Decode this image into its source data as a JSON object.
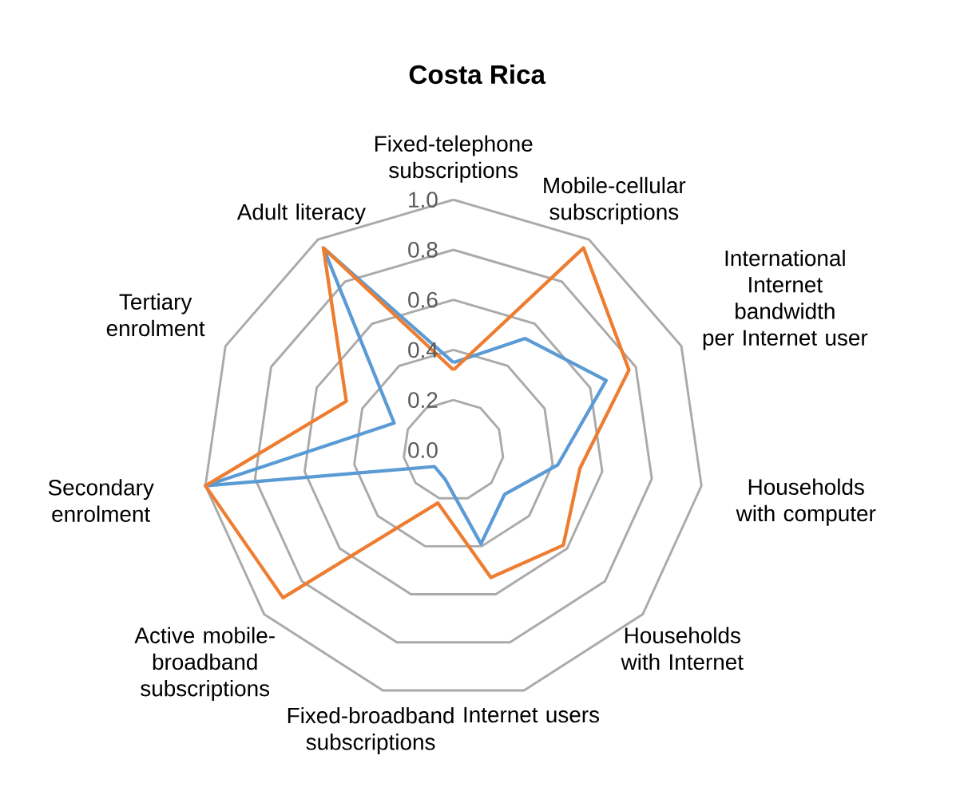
{
  "chart_data": {
    "type": "radar",
    "title": "Costa Rica",
    "categories": [
      "Fixed-telephone subscriptions",
      "Mobile-cellular subscriptions",
      "International Internet bandwidth per Internet user",
      "Households with computer",
      "Households with Internet",
      "Internet users",
      "Fixed-broadband subscriptions",
      "Active mobile-broadband subscriptions",
      "Secondary enrolment",
      "Tertiary enrolment",
      "Adult literacy"
    ],
    "series": [
      {
        "color": "#5b9bd5",
        "values": [
          0.35,
          0.53,
          0.67,
          0.42,
          0.27,
          0.39,
          0.12,
          0.1,
          1.0,
          0.26,
          0.96
        ]
      },
      {
        "color": "#ed7d31",
        "values": [
          0.32,
          0.96,
          0.77,
          0.51,
          0.58,
          0.53,
          0.22,
          0.9,
          1.0,
          0.47,
          0.96
        ]
      }
    ],
    "ylim": [
      0,
      1
    ],
    "yticks": [
      {
        "value": 0,
        "label": "0.0"
      },
      {
        "value": 0.2,
        "label": "0.2"
      },
      {
        "value": 0.4,
        "label": "0.4"
      },
      {
        "value": 0.6,
        "label": "0.6"
      },
      {
        "value": 0.8,
        "label": "0.8"
      },
      {
        "value": 1,
        "label": "1.0"
      }
    ],
    "grid": true
  }
}
